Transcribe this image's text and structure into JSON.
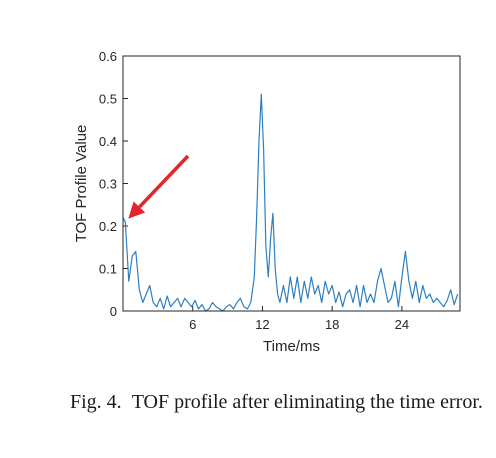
{
  "chart_data": {
    "type": "line",
    "title": "",
    "xlabel": "Time/ms",
    "ylabel": "TOF Profile Value",
    "xlim": [
      0,
      29
    ],
    "ylim": [
      0,
      0.6
    ],
    "x_ticks": [
      6,
      12,
      18,
      24
    ],
    "y_ticks": [
      0,
      0.1,
      0.2,
      0.3,
      0.4,
      0.5,
      0.6
    ],
    "y_tick_labels": [
      "0",
      "0.1",
      "0.2",
      "0.3",
      "0.4",
      "0.5",
      "0.6"
    ],
    "grid": false,
    "line_color": "#2f7fc0",
    "annotation": {
      "type": "arrow",
      "color": "#e3262b",
      "points_to": {
        "x": 0.2,
        "y": 0.215
      }
    },
    "series": [
      {
        "x": [
          0,
          0.2,
          0.5,
          0.8,
          1.1,
          1.4,
          1.7,
          2.0,
          2.3,
          2.6,
          2.9,
          3.2,
          3.5,
          3.8,
          4.1,
          4.4,
          4.7,
          5.0,
          5.3,
          5.6,
          5.9,
          6.2,
          6.5,
          6.8,
          7.1,
          7.4,
          7.7,
          8.0,
          8.3,
          8.6,
          8.9,
          9.2,
          9.5,
          9.8,
          10.1,
          10.4,
          10.7,
          11.0,
          11.3,
          11.5,
          11.7,
          11.9,
          12.1,
          12.3,
          12.5,
          12.7,
          12.9,
          13.1,
          13.3,
          13.5,
          13.8,
          14.1,
          14.4,
          14.7,
          15.0,
          15.3,
          15.6,
          15.9,
          16.2,
          16.5,
          16.8,
          17.1,
          17.4,
          17.7,
          18.0,
          18.3,
          18.6,
          18.9,
          19.2,
          19.5,
          19.8,
          20.1,
          20.4,
          20.7,
          21.0,
          21.3,
          21.6,
          21.9,
          22.2,
          22.5,
          22.8,
          23.1,
          23.4,
          23.7,
          24.0,
          24.3,
          24.6,
          24.9,
          25.2,
          25.5,
          25.8,
          26.1,
          26.4,
          26.7,
          27.0,
          27.3,
          27.6,
          27.9,
          28.2,
          28.5,
          28.8
        ],
        "y": [
          0.22,
          0.21,
          0.07,
          0.13,
          0.14,
          0.05,
          0.02,
          0.04,
          0.06,
          0.02,
          0.01,
          0.03,
          0.005,
          0.035,
          0.01,
          0.02,
          0.03,
          0.01,
          0.03,
          0.02,
          0.01,
          0.025,
          0.005,
          0.015,
          0.0,
          0.005,
          0.02,
          0.01,
          0.005,
          0.0,
          0.01,
          0.015,
          0.005,
          0.02,
          0.03,
          0.01,
          0.005,
          0.02,
          0.08,
          0.22,
          0.4,
          0.51,
          0.38,
          0.15,
          0.08,
          0.17,
          0.23,
          0.1,
          0.04,
          0.02,
          0.06,
          0.02,
          0.08,
          0.03,
          0.08,
          0.02,
          0.07,
          0.03,
          0.08,
          0.04,
          0.06,
          0.02,
          0.07,
          0.04,
          0.06,
          0.02,
          0.045,
          0.01,
          0.04,
          0.05,
          0.02,
          0.06,
          0.01,
          0.06,
          0.02,
          0.04,
          0.02,
          0.07,
          0.1,
          0.06,
          0.02,
          0.03,
          0.07,
          0.01,
          0.08,
          0.14,
          0.07,
          0.03,
          0.07,
          0.02,
          0.06,
          0.03,
          0.04,
          0.02,
          0.03,
          0.02,
          0.01,
          0.025,
          0.05,
          0.015,
          0.04
        ]
      }
    ]
  },
  "caption": {
    "label": "Fig. 4.",
    "text": "TOF profile after eliminating the time error."
  }
}
